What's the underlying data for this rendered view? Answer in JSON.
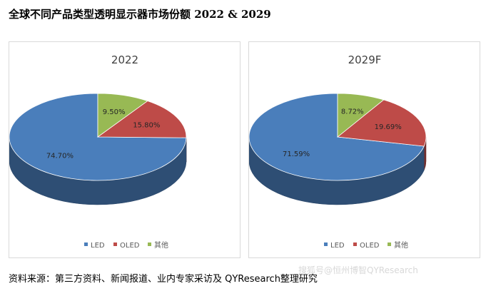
{
  "title": "全球不同产品类型透明显示器市场份额 2022 & 2029",
  "source": "资料来源：第三方资料、新闻报道、业内专家采访及 QYResearch整理研究",
  "watermark": "搜狐号@恒州博智QYResearch",
  "colors": {
    "LED": "#4a7ebb",
    "OLED": "#be4b48",
    "其他": "#98b954"
  },
  "chart_data": [
    {
      "type": "pie",
      "title": "2022",
      "labels": [
        "LED",
        "OLED",
        "其他"
      ],
      "values": [
        74.7,
        15.8,
        9.5
      ],
      "value_labels": [
        "74.70%",
        "15.80%",
        "9.50%"
      ],
      "legend": "bottom",
      "style": "3d"
    },
    {
      "type": "pie",
      "title": "2029F",
      "labels": [
        "LED",
        "OLED",
        "其他"
      ],
      "values": [
        71.59,
        19.69,
        8.72
      ],
      "value_labels": [
        "71.59%",
        "19.69%",
        "8.72%"
      ],
      "legend": "bottom",
      "style": "3d"
    }
  ]
}
